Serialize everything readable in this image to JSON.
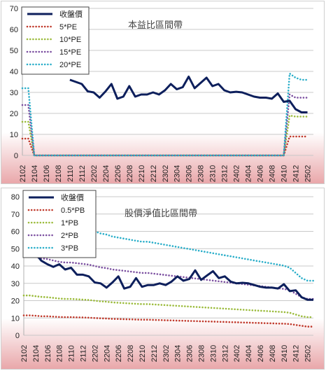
{
  "chart_data": [
    {
      "type": "line",
      "title": "本益比區間帶",
      "xlabel": "",
      "ylabel": "",
      "ylim": [
        0,
        70
      ],
      "yticks": [
        0,
        10,
        20,
        30,
        40,
        50,
        60,
        70
      ],
      "grid": true,
      "legend_position": "top-left",
      "x": [
        "2102",
        "2103",
        "2104",
        "2105",
        "2106",
        "2107",
        "2108",
        "2109",
        "2110",
        "2111",
        "2112",
        "2201",
        "2202",
        "2203",
        "2204",
        "2205",
        "2206",
        "2207",
        "2208",
        "2209",
        "2210",
        "2211",
        "2212",
        "2301",
        "2302",
        "2303",
        "2304",
        "2305",
        "2306",
        "2307",
        "2308",
        "2309",
        "2310",
        "2311",
        "2312",
        "2401",
        "2402",
        "2403",
        "2404",
        "2405",
        "2406",
        "2407",
        "2408",
        "2409",
        "2410",
        "2411",
        "2412",
        "2501",
        "2502",
        "2503"
      ],
      "xticks": [
        "2102",
        "2104",
        "2106",
        "2108",
        "2110",
        "2112",
        "2202",
        "2204",
        "2206",
        "2208",
        "2210",
        "2212",
        "2302",
        "2304",
        "2306",
        "2308",
        "2310",
        "2312",
        "2402",
        "2404",
        "2406",
        "2408",
        "2410",
        "2412",
        "2502"
      ],
      "series": [
        {
          "name": "收盤價",
          "color": "#0d1f5c",
          "style": "solid",
          "values": [
            null,
            null,
            null,
            null,
            null,
            null,
            null,
            null,
            36,
            35,
            34,
            30.5,
            30,
            27.5,
            30.5,
            34,
            27,
            28,
            33,
            28,
            29,
            29,
            30,
            29,
            31,
            34,
            31.5,
            32.5,
            37.5,
            32,
            34.5,
            37,
            33,
            34,
            31,
            30,
            30.3,
            30,
            29,
            28,
            27.5,
            27.5,
            27,
            29.5,
            25.5,
            26,
            22,
            20.5,
            20.5,
            null
          ]
        },
        {
          "name": "5*PE",
          "color": "#c0392b",
          "style": "dotted",
          "values": [
            8,
            8,
            0,
            0,
            0,
            0,
            0,
            0,
            0,
            0,
            0,
            0,
            0,
            0,
            0,
            0,
            0,
            0,
            0,
            0,
            0,
            0,
            0,
            0,
            0,
            0,
            0,
            0,
            0,
            0,
            0,
            0,
            0,
            0,
            0,
            0,
            0,
            0,
            0,
            0,
            0,
            0,
            0,
            0,
            0,
            9,
            9,
            9,
            9,
            null
          ]
        },
        {
          "name": "10*PE",
          "color": "#9bbb3b",
          "style": "dotted",
          "values": [
            16,
            16,
            0,
            0,
            0,
            0,
            0,
            0,
            0,
            0,
            0,
            0,
            0,
            0,
            0,
            0,
            0,
            0,
            0,
            0,
            0,
            0,
            0,
            0,
            0,
            0,
            0,
            0,
            0,
            0,
            0,
            0,
            0,
            0,
            0,
            0,
            0,
            0,
            0,
            0,
            0,
            0,
            0,
            0,
            0,
            19,
            18.5,
            18.5,
            18.5,
            null
          ]
        },
        {
          "name": "15*PE",
          "color": "#7b4fa0",
          "style": "dotted",
          "values": [
            24,
            24,
            0,
            0,
            0,
            0,
            0,
            0,
            0,
            0,
            0,
            0,
            0,
            0,
            0,
            0,
            0,
            0,
            0,
            0,
            0,
            0,
            0,
            0,
            0,
            0,
            0,
            0,
            0,
            0,
            0,
            0,
            0,
            0,
            0,
            0,
            0,
            0,
            0,
            0,
            0,
            0,
            0,
            0,
            0,
            29,
            27.5,
            27.5,
            27.5,
            null
          ]
        },
        {
          "name": "20*PE",
          "color": "#2aaec9",
          "style": "dotted",
          "values": [
            32,
            32,
            0,
            0,
            0,
            0,
            0,
            0,
            0,
            0,
            0,
            0,
            0,
            0,
            0,
            0,
            0,
            0,
            0,
            0,
            0,
            0,
            0,
            0,
            0,
            0,
            0,
            0,
            0,
            0,
            0,
            0,
            0,
            0,
            0,
            0,
            0,
            0,
            0,
            0,
            0,
            0,
            0,
            0,
            0,
            39,
            37,
            36,
            36,
            null
          ]
        }
      ]
    },
    {
      "type": "line",
      "title": "股價淨值比區間帶",
      "xlabel": "",
      "ylabel": "",
      "ylim": [
        0,
        80
      ],
      "yticks": [
        0,
        10,
        20,
        30,
        40,
        50,
        60,
        70,
        80
      ],
      "grid": true,
      "legend_position": "top-left",
      "x": [
        "2102",
        "2103",
        "2104",
        "2105",
        "2106",
        "2107",
        "2108",
        "2109",
        "2110",
        "2111",
        "2112",
        "2201",
        "2202",
        "2203",
        "2204",
        "2205",
        "2206",
        "2207",
        "2208",
        "2209",
        "2210",
        "2211",
        "2212",
        "2301",
        "2302",
        "2303",
        "2304",
        "2305",
        "2306",
        "2307",
        "2308",
        "2309",
        "2310",
        "2311",
        "2312",
        "2401",
        "2402",
        "2403",
        "2404",
        "2405",
        "2406",
        "2407",
        "2408",
        "2409",
        "2410",
        "2411",
        "2412",
        "2501",
        "2502",
        "2503"
      ],
      "xticks": [
        "2102",
        "2104",
        "2106",
        "2108",
        "2110",
        "2112",
        "2202",
        "2204",
        "2206",
        "2208",
        "2210",
        "2212",
        "2302",
        "2304",
        "2306",
        "2308",
        "2310",
        "2312",
        "2402",
        "2404",
        "2406",
        "2408",
        "2410",
        "2412",
        "2502"
      ],
      "series": [
        {
          "name": "收盤價",
          "color": "#0d1f5c",
          "style": "solid",
          "values": [
            null,
            null,
            47,
            43,
            41,
            39.5,
            41,
            38,
            39,
            35,
            35,
            34,
            30.5,
            30,
            27.5,
            30.5,
            34,
            27,
            28,
            33,
            28,
            29,
            29,
            30,
            29,
            31,
            34,
            31.5,
            32.5,
            37.5,
            32,
            34.5,
            37,
            33,
            34,
            31,
            30,
            30.3,
            30,
            29,
            28,
            27.5,
            27.5,
            27,
            29.5,
            25.5,
            26,
            22,
            20.5,
            20.5
          ]
        },
        {
          "name": "0.5*PB",
          "color": "#c0392b",
          "style": "dotted",
          "values": [
            11.5,
            11.5,
            11.3,
            11,
            11,
            10.8,
            10.6,
            10.5,
            10.5,
            10.4,
            10.3,
            10.2,
            10,
            9.8,
            9.7,
            9.5,
            9.4,
            9.3,
            9.2,
            9.1,
            9,
            9,
            8.9,
            8.8,
            8.7,
            8.6,
            8.5,
            8.4,
            8.3,
            8.2,
            8.1,
            8,
            7.9,
            7.8,
            7.7,
            7.6,
            7.5,
            7.4,
            7.3,
            7.2,
            7.1,
            7,
            6.9,
            6.8,
            6.7,
            6.5,
            6,
            5.5,
            5,
            5
          ]
        },
        {
          "name": "1*PB",
          "color": "#9bbb3b",
          "style": "dotted",
          "values": [
            23,
            23,
            22.6,
            22.2,
            22,
            21.6,
            21.2,
            21,
            21,
            20.8,
            20.6,
            20.4,
            20,
            19.6,
            19.4,
            19,
            18.8,
            18.6,
            18.4,
            18.2,
            18,
            18,
            17.8,
            17.6,
            17.4,
            17.2,
            17,
            16.8,
            16.6,
            16.4,
            16.2,
            16,
            15.8,
            15.6,
            15.4,
            15.2,
            15,
            14.8,
            14.6,
            14.4,
            14.2,
            14,
            13.8,
            13.6,
            13.4,
            13,
            12,
            11,
            10.5,
            10.5
          ]
        },
        {
          "name": "2*PB",
          "color": "#7b4fa0",
          "style": "dotted",
          "values": [
            46,
            46,
            45.2,
            44.4,
            44,
            43.2,
            42.4,
            42,
            42,
            41.6,
            41.2,
            40.8,
            40,
            39.2,
            38.8,
            38,
            37.6,
            37.2,
            36.8,
            36.4,
            36,
            36,
            35.6,
            35.2,
            34.8,
            34.4,
            34,
            33.6,
            33.2,
            32.8,
            32.4,
            32,
            31.6,
            31.2,
            30.8,
            30.4,
            30,
            29.6,
            29.2,
            28.8,
            28.4,
            28,
            27.6,
            27.2,
            26.8,
            26,
            24,
            22,
            21,
            21
          ]
        },
        {
          "name": "3*PB",
          "color": "#2aaec9",
          "style": "dotted",
          "values": [
            69,
            69,
            67.8,
            66.6,
            66,
            64.8,
            63.6,
            63,
            63,
            62.4,
            61.8,
            61.2,
            60,
            58.8,
            58.2,
            57,
            56.4,
            55.8,
            55.2,
            54.6,
            54,
            54,
            53.4,
            52.8,
            52.2,
            51.6,
            51,
            50.4,
            49.8,
            49.2,
            48.6,
            48,
            47.4,
            46.8,
            46.2,
            45.6,
            45,
            44.4,
            43.8,
            43.2,
            42.6,
            42,
            41.4,
            40.8,
            40.2,
            39,
            36,
            33,
            31.5,
            31.5
          ]
        }
      ]
    }
  ]
}
